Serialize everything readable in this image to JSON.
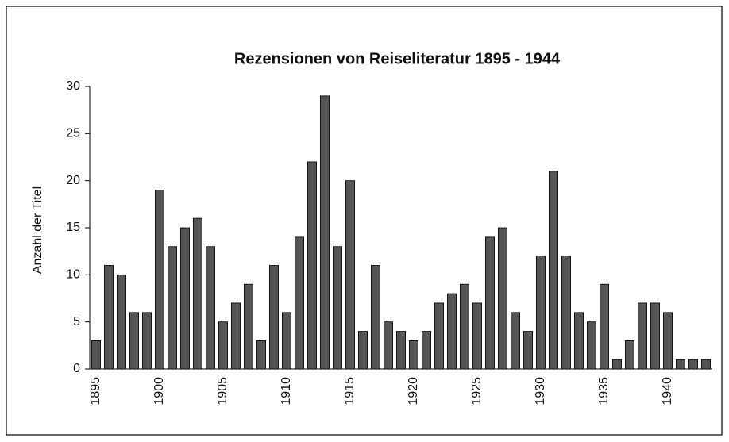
{
  "chart_data": {
    "type": "bar",
    "title": "Rezensionen von Reiseliteratur 1895 - 1944",
    "y_label": "Anzahl der Titel",
    "categories": [
      "1895",
      null,
      null,
      null,
      null,
      "1900",
      null,
      null,
      null,
      null,
      "1905",
      null,
      null,
      null,
      null,
      "1910",
      null,
      null,
      null,
      null,
      "1915",
      null,
      null,
      null,
      null,
      "1920",
      null,
      null,
      null,
      null,
      "1925",
      null,
      null,
      null,
      null,
      "1930",
      null,
      null,
      null,
      null,
      "1935",
      null,
      null,
      null,
      null,
      "1940",
      null,
      null,
      null
    ],
    "values": [
      3,
      11,
      10,
      6,
      6,
      19,
      13,
      15,
      16,
      13,
      5,
      7,
      9,
      3,
      11,
      6,
      14,
      22,
      29,
      13,
      20,
      4,
      11,
      5,
      4,
      3,
      4,
      7,
      8,
      9,
      7,
      14,
      15,
      6,
      4,
      12,
      21,
      12,
      6,
      5,
      9,
      1,
      3,
      7,
      7,
      6,
      1,
      1,
      1
    ],
    "color": "#555555",
    "ylim": [
      0,
      30
    ],
    "yticks": [
      0,
      5,
      10,
      15,
      20,
      25,
      30
    ],
    "grid": false
  }
}
